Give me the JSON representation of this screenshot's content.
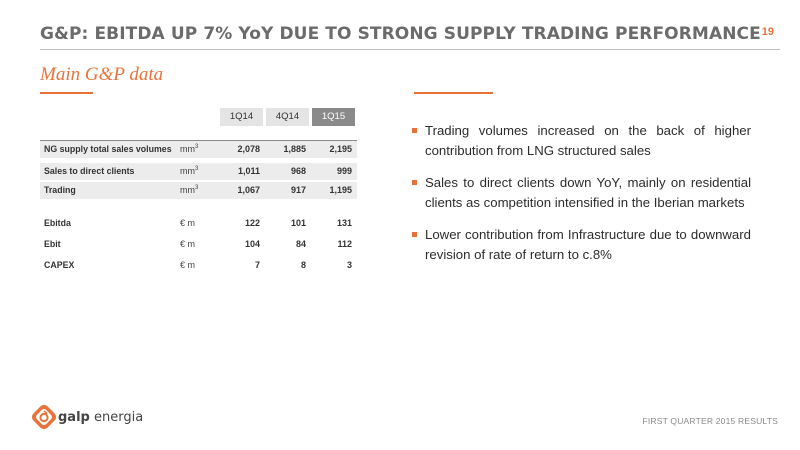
{
  "title": "G&P: EBITDA UP 7% YoY DUE TO STRONG SUPPLY TRADING PERFORMANCE",
  "page_number": "19",
  "subtitle": "Main G&P data",
  "table": {
    "columns": [
      "1Q14",
      "4Q14",
      "1Q15"
    ],
    "rows": [
      {
        "label": "NG supply total sales volumes",
        "unit": "mm",
        "unit_sup": "3",
        "values": [
          "2,078",
          "1,885",
          "2,195"
        ]
      },
      {
        "label": "Sales to direct clients",
        "unit": "mm",
        "unit_sup": "3",
        "values": [
          "1,011",
          "968",
          "999"
        ]
      },
      {
        "label": "Trading",
        "unit": "mm",
        "unit_sup": "3",
        "values": [
          "1,067",
          "917",
          "1,195"
        ]
      },
      {
        "label": "Ebitda",
        "unit": "€ m",
        "values": [
          "122",
          "101",
          "131"
        ]
      },
      {
        "label": "Ebit",
        "unit": "€ m",
        "values": [
          "104",
          "84",
          "112"
        ]
      },
      {
        "label": "CAPEX",
        "unit": "€ m",
        "values": [
          "7",
          "8",
          "3"
        ]
      }
    ]
  },
  "bullets": [
    "Trading volumes increased on the back of higher contribution from LNG structured sales",
    "Sales to direct clients down YoY, mainly on residential clients as competition intensified in the Iberian markets",
    "Lower contribution from Infrastructure due to downward revision of rate of return to c.8%"
  ],
  "logo": {
    "brand": "galp",
    "suffix": "energia"
  },
  "footer": "FIRST QUARTER 2015 RESULTS",
  "colors": {
    "accent": "#e8733a",
    "title": "#6b6b6b",
    "header_active": "#8a8a8a",
    "header_inactive": "#e4e4e4"
  }
}
